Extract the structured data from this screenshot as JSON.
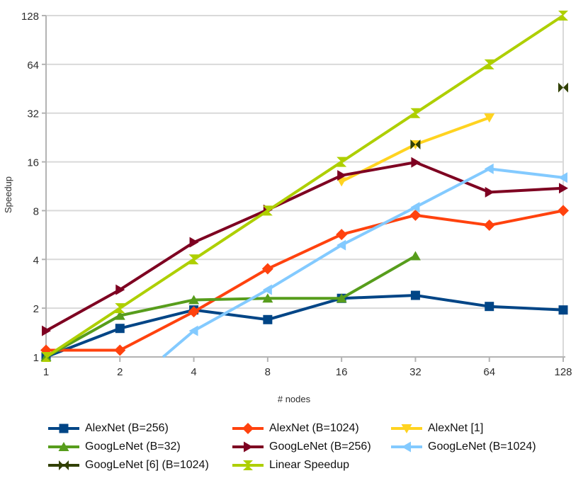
{
  "chart_data": {
    "type": "line",
    "title": "",
    "xlabel": "# nodes",
    "ylabel": "Speedup",
    "x_scale": "log2",
    "y_scale": "log2",
    "xlim": [
      1,
      128
    ],
    "ylim": [
      1,
      128
    ],
    "x_ticks": [
      1,
      2,
      4,
      8,
      16,
      32,
      64,
      128
    ],
    "y_ticks": [
      1,
      2,
      4,
      8,
      16,
      32,
      64,
      128
    ],
    "grid": "horizontal",
    "grid_color": "#d9d9d9",
    "axis_color": "#b3b3b3",
    "text_color": "#2e2e2e",
    "legend_position": "bottom",
    "series": [
      {
        "name": "AlexNet (B=256)",
        "color": "#004586",
        "marker": "square",
        "line": true,
        "points": [
          [
            1,
            1.0
          ],
          [
            2,
            1.5
          ],
          [
            4,
            1.95
          ],
          [
            8,
            1.7
          ],
          [
            16,
            2.3
          ],
          [
            32,
            2.4
          ],
          [
            64,
            2.05
          ],
          [
            128,
            1.95
          ]
        ]
      },
      {
        "name": "AlexNet (B=1024)",
        "color": "#ff420e",
        "marker": "diamond",
        "line": true,
        "points": [
          [
            1,
            1.1
          ],
          [
            2,
            1.1
          ],
          [
            4,
            1.9
          ],
          [
            8,
            3.5
          ],
          [
            16,
            5.7
          ],
          [
            32,
            7.5
          ],
          [
            64,
            6.5
          ],
          [
            128,
            8.0
          ]
        ]
      },
      {
        "name": "AlexNet [1]",
        "color": "#ffd320",
        "marker": "triangle-down",
        "line": true,
        "points": [
          [
            16,
            12.1
          ],
          [
            32,
            20.5
          ],
          [
            64,
            30
          ]
        ]
      },
      {
        "name": "GoogLeNet (B=32)",
        "color": "#579d1c",
        "marker": "triangle-up",
        "line": true,
        "points": [
          [
            1,
            1.0
          ],
          [
            2,
            1.8
          ],
          [
            4,
            2.25
          ],
          [
            8,
            2.3
          ],
          [
            16,
            2.3
          ],
          [
            32,
            4.2
          ]
        ]
      },
      {
        "name": "GoogLeNet (B=256)",
        "color": "#7e0021",
        "marker": "triangle-right",
        "line": true,
        "points": [
          [
            1,
            1.45
          ],
          [
            2,
            2.6
          ],
          [
            4,
            5.1
          ],
          [
            8,
            8.1
          ],
          [
            16,
            13.2
          ],
          [
            32,
            15.9
          ],
          [
            64,
            10.4
          ],
          [
            128,
            11.0
          ]
        ]
      },
      {
        "name": "GoogLeNet (B=1024)",
        "color": "#83caff",
        "marker": "triangle-left",
        "line": true,
        "line_enters_at": [
          3,
          1.0
        ],
        "points": [
          [
            4,
            1.45
          ],
          [
            8,
            2.6
          ],
          [
            16,
            4.9
          ],
          [
            32,
            8.4
          ],
          [
            64,
            14.5
          ],
          [
            128,
            12.8
          ]
        ]
      },
      {
        "name": "GoogLeNet [6] (B=1024)",
        "color": "#314004",
        "marker": "bowtie",
        "line": false,
        "points": [
          [
            32,
            20.5
          ],
          [
            128,
            46
          ]
        ]
      },
      {
        "name": "Linear Speedup",
        "color": "#aecf00",
        "marker": "hourglass",
        "line": true,
        "points": [
          [
            1,
            1
          ],
          [
            2,
            2
          ],
          [
            4,
            4
          ],
          [
            8,
            8
          ],
          [
            16,
            16
          ],
          [
            32,
            32
          ],
          [
            64,
            64
          ],
          [
            128,
            128
          ]
        ]
      }
    ]
  }
}
